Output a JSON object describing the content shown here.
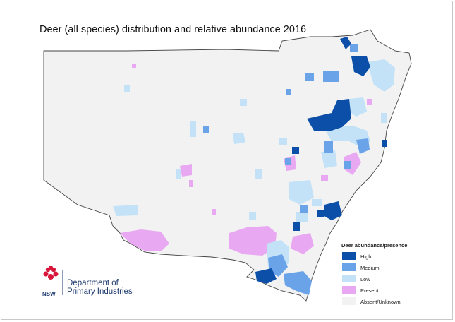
{
  "title": "Deer (all species) distribution and relative abundance 2016",
  "legend": {
    "title": "Deer abundance/presence",
    "items": [
      {
        "label": "High",
        "color": "#0b4fa8"
      },
      {
        "label": "Medium",
        "color": "#6aa3e8"
      },
      {
        "label": "Low",
        "color": "#c3e2f8"
      },
      {
        "label": "Present",
        "color": "#e9a9f2"
      },
      {
        "label": "Absent/Unknown",
        "color": "#f2f2f2"
      }
    ]
  },
  "logo": {
    "org_line1": "Department of",
    "org_line2": "Primary Industries",
    "mark_text": "NSW"
  }
}
